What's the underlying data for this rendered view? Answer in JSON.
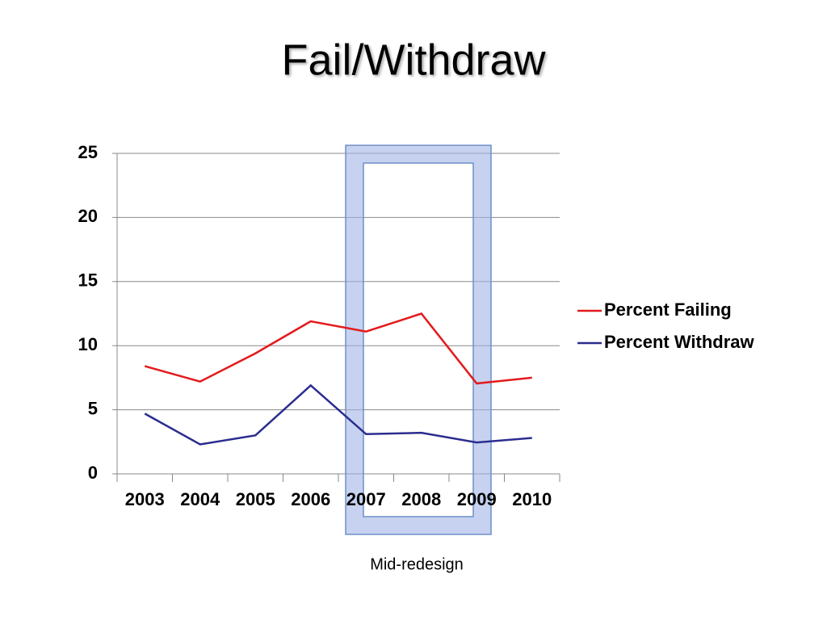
{
  "chart_data": {
    "type": "line",
    "title": "Fail/Withdraw",
    "categories": [
      "2003",
      "2004",
      "2005",
      "2006",
      "2007",
      "2008",
      "2009",
      "2010"
    ],
    "series": [
      {
        "name": "Percent Failing",
        "color": "#e31a1c",
        "values": [
          8.4,
          7.2,
          9.4,
          11.9,
          11.1,
          12.5,
          7.05,
          7.5
        ]
      },
      {
        "name": "Percent Withdraw",
        "color": "#2b2d8f",
        "values": [
          4.7,
          2.3,
          3.0,
          6.9,
          3.1,
          3.2,
          2.45,
          2.8
        ]
      }
    ],
    "ylim": [
      0,
      25
    ],
    "yticks": [
      0,
      5,
      10,
      15,
      20,
      25
    ],
    "grid": true,
    "legend": "right",
    "annotation": "Mid-redesign"
  }
}
